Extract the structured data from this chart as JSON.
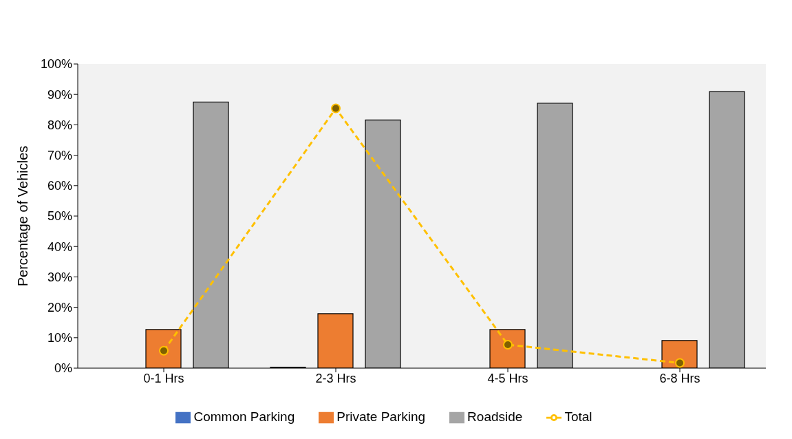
{
  "chart_data": {
    "type": "bar",
    "ylabel": "Percentage of Vehicles",
    "categories": [
      "0-1 Hrs",
      "2-3 Hrs",
      "4-5 Hrs",
      "6-8 Hrs"
    ],
    "series": [
      {
        "name": "Common Parking",
        "color": "#4472c4",
        "values": [
          0,
          0.3,
          0,
          0
        ]
      },
      {
        "name": "Private Parking",
        "color": "#ed7d31",
        "values": [
          12.7,
          17.9,
          12.7,
          9.1
        ]
      },
      {
        "name": "Roadside",
        "color": "#a5a5a5",
        "values": [
          87.5,
          81.6,
          87.1,
          90.9
        ]
      },
      {
        "name": "Total",
        "color": "#ffc000",
        "type": "line",
        "line_style": "dashed",
        "marker": "circle",
        "values": [
          5.7,
          85.4,
          7.7,
          1.7
        ]
      }
    ],
    "ylim": [
      0,
      100
    ],
    "yticks": [
      {
        "value": 0,
        "label": "0%"
      },
      {
        "value": 10,
        "label": "10%"
      },
      {
        "value": 20,
        "label": "20%"
      },
      {
        "value": 30,
        "label": "30%"
      },
      {
        "value": 40,
        "label": "40%"
      },
      {
        "value": 50,
        "label": "50%"
      },
      {
        "value": 60,
        "label": "60%"
      },
      {
        "value": 70,
        "label": "70%"
      },
      {
        "value": 80,
        "label": "80%"
      },
      {
        "value": 90,
        "label": "90%"
      },
      {
        "value": 100,
        "label": "100%"
      }
    ],
    "grid": false,
    "legend": "bottom"
  }
}
